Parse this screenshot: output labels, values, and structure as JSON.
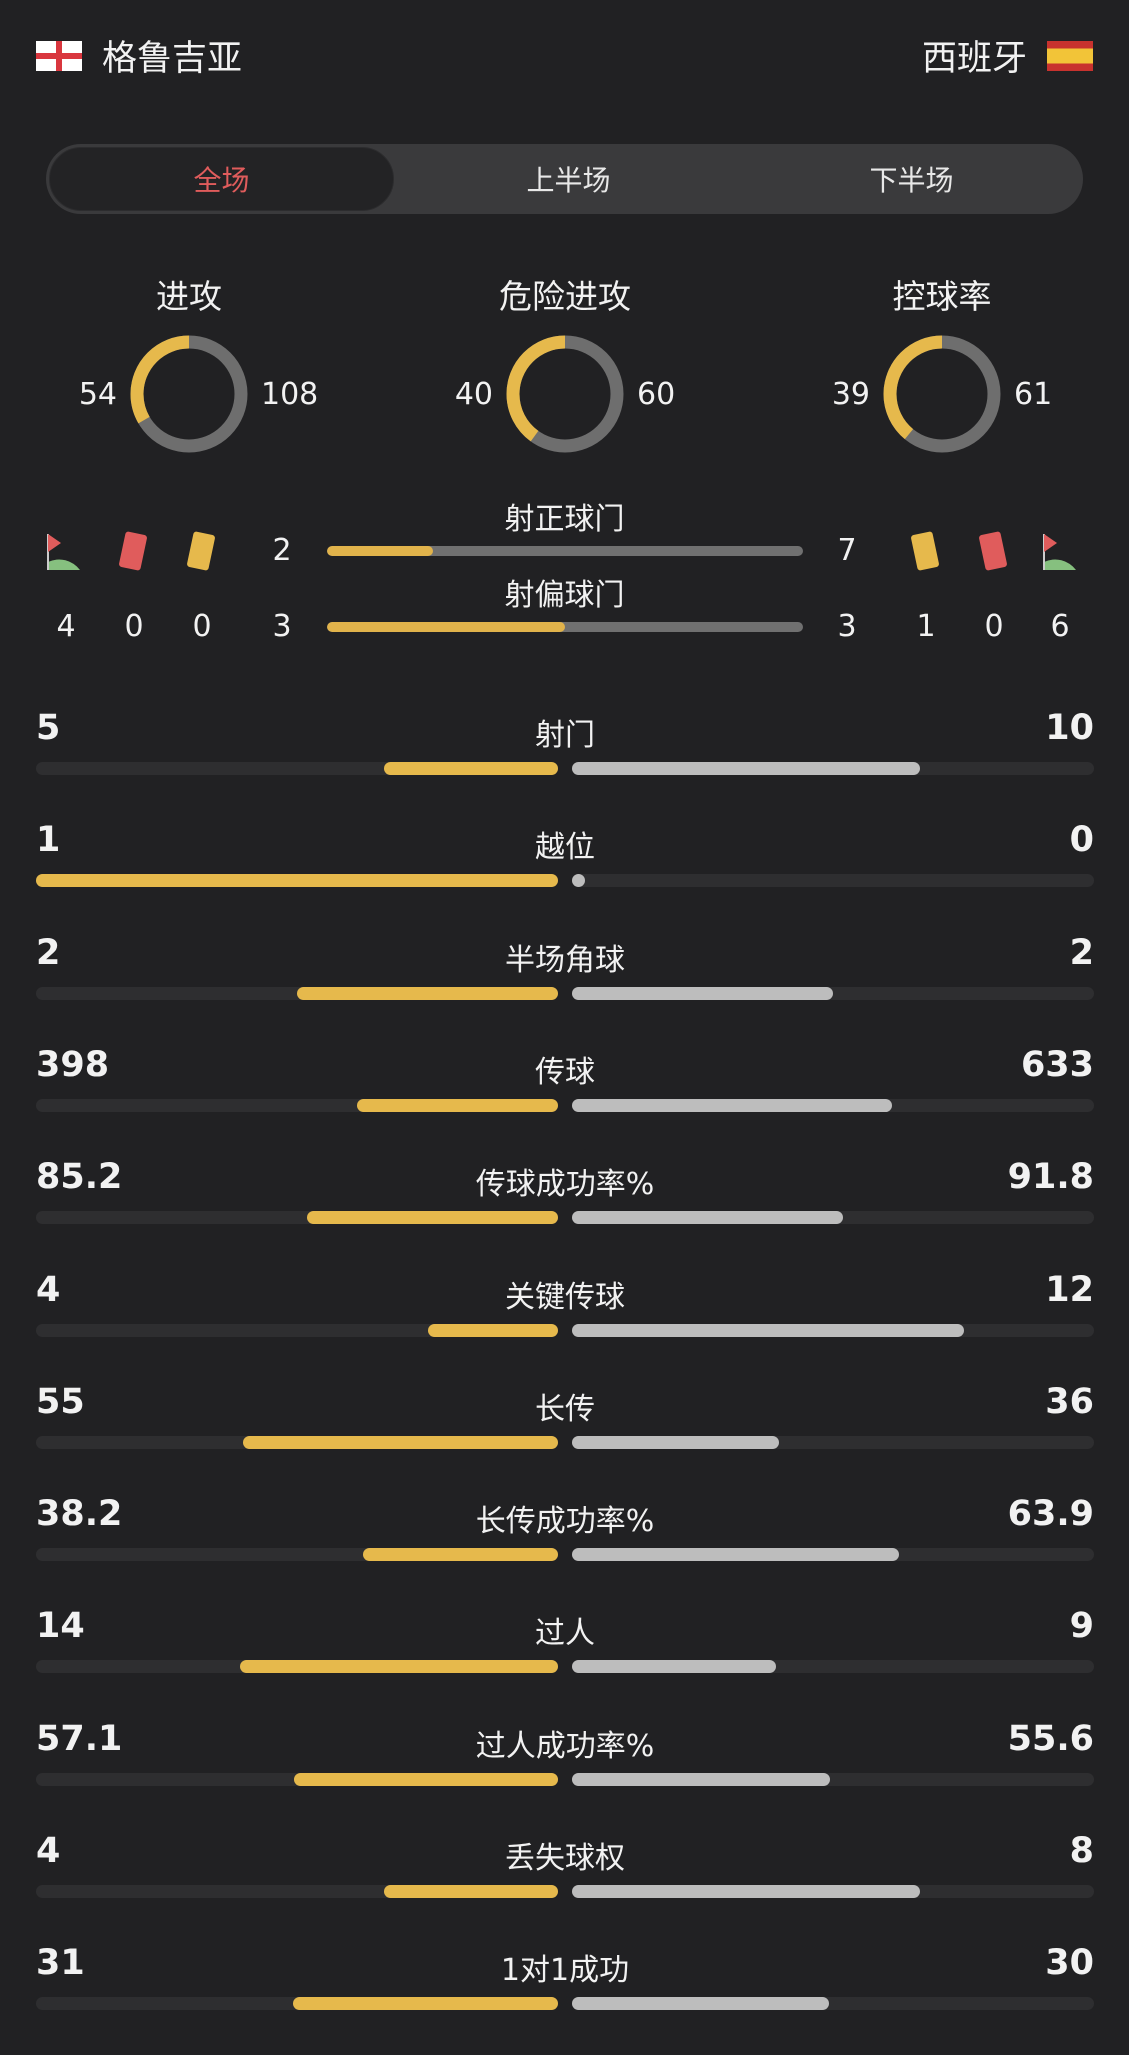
{
  "header": {
    "home": {
      "name": "格鲁吉亚",
      "flag": "georgia-flag"
    },
    "away": {
      "name": "西班牙",
      "flag": "spain-flag"
    }
  },
  "tabs": [
    {
      "label": "全场",
      "active": true
    },
    {
      "label": "上半场",
      "active": false
    },
    {
      "label": "下半场",
      "active": false
    }
  ],
  "colors": {
    "home": "#e6b94c",
    "away": "#bdbdbd",
    "donut_away": "#6e6e6e",
    "active_tab": "#e05c5c"
  },
  "donuts": [
    {
      "title": "进攻",
      "home": "54",
      "away": "108"
    },
    {
      "title": "危险进攻",
      "home": "40",
      "away": "60"
    },
    {
      "title": "控球率",
      "home": "39",
      "away": "61"
    }
  ],
  "shots": {
    "on_target": {
      "label": "射正球门",
      "home": "2",
      "away": "7"
    },
    "off_target": {
      "label": "射偏球门",
      "home": "3",
      "away": "3"
    }
  },
  "cards": {
    "home": {
      "corners": "4",
      "red": "0",
      "yellow": "0"
    },
    "away": {
      "yellow": "1",
      "red": "0",
      "corners": "6"
    }
  },
  "stats": [
    {
      "label": "射门",
      "home": "5",
      "away": "10"
    },
    {
      "label": "越位",
      "home": "1",
      "away": "0"
    },
    {
      "label": "半场角球",
      "home": "2",
      "away": "2"
    },
    {
      "label": "传球",
      "home": "398",
      "away": "633"
    },
    {
      "label": "传球成功率%",
      "home": "85.2",
      "away": "91.8"
    },
    {
      "label": "关键传球",
      "home": "4",
      "away": "12"
    },
    {
      "label": "长传",
      "home": "55",
      "away": "36"
    },
    {
      "label": "长传成功率%",
      "home": "38.2",
      "away": "63.9"
    },
    {
      "label": "过人",
      "home": "14",
      "away": "9"
    },
    {
      "label": "过人成功率%",
      "home": "57.1",
      "away": "55.6"
    },
    {
      "label": "丢失球权",
      "home": "4",
      "away": "8"
    },
    {
      "label": "1对1成功",
      "home": "31",
      "away": "30"
    }
  ]
}
